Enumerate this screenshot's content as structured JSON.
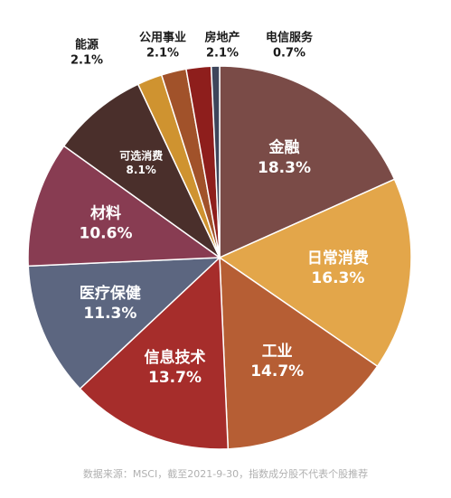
{
  "chart_data": {
    "type": "pie",
    "title": "",
    "unit": "%",
    "slices": [
      {
        "label": "金融",
        "value": 18.3,
        "display": "18.3%",
        "color": "#7a4b47",
        "label_style": "inside"
      },
      {
        "label": "日常消费",
        "value": 16.3,
        "display": "16.3%",
        "color": "#e3a64a",
        "label_style": "inside"
      },
      {
        "label": "工业",
        "value": 14.7,
        "display": "14.7%",
        "color": "#b65e34",
        "label_style": "inside"
      },
      {
        "label": "信息技术",
        "value": 13.7,
        "display": "13.7%",
        "color": "#a62d2b",
        "label_style": "inside"
      },
      {
        "label": "医疗保健",
        "value": 11.3,
        "display": "11.3%",
        "color": "#5c6680",
        "label_style": "inside"
      },
      {
        "label": "材料",
        "value": 10.6,
        "display": "10.6%",
        "color": "#883c52",
        "label_style": "inside"
      },
      {
        "label": "可选消费",
        "value": 8.1,
        "display": "8.1%",
        "color": "#4a2f2b",
        "label_style": "inside-small"
      },
      {
        "label": "能源",
        "value": 2.1,
        "display": "2.1%",
        "color": "#cf9330",
        "label_style": "outside"
      },
      {
        "label": "公用事业",
        "value": 2.1,
        "display": "2.1%",
        "color": "#a1522a",
        "label_style": "outside"
      },
      {
        "label": "房地产",
        "value": 2.1,
        "display": "2.1%",
        "color": "#8e1e1c",
        "label_style": "outside"
      },
      {
        "label": "电信服务",
        "value": 0.7,
        "display": "0.7%",
        "color": "#3e465b",
        "label_style": "outside"
      }
    ],
    "start_angle_deg": 0,
    "direction": "clockwise",
    "legend": "none"
  },
  "footer": {
    "source_text": "数据来源：MSCI，截至2021-9-30，指数成分股不代表个股推荐"
  }
}
